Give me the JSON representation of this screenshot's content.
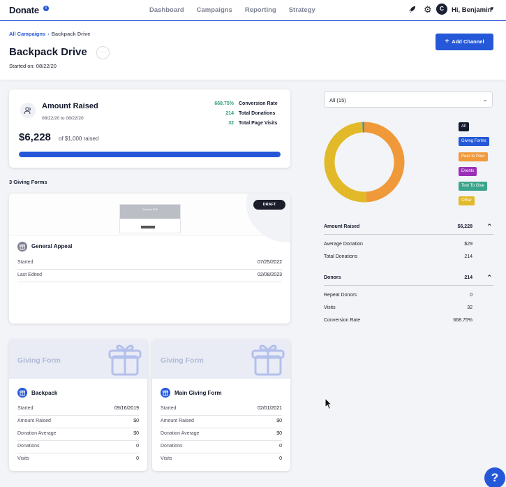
{
  "app": {
    "logo": "Donate",
    "info_icon": "info-icon"
  },
  "nav": {
    "links": [
      "Dashboard",
      "Campaigns",
      "Reporting",
      "Strategy"
    ],
    "avatar_initial": "C",
    "greeting": "Hi, Benjamin"
  },
  "breadcrumb": {
    "parent": "All Campaigns",
    "current": "Backpack Drive"
  },
  "page": {
    "title": "Backpack Drive",
    "started": "Started on: 08/22/20",
    "add_channel": "Add Channel",
    "add_icon": "+"
  },
  "amount_card": {
    "title": "Amount Raised",
    "dates": "08/22/20 to 08/22/20",
    "raised": "$6,228",
    "raised_of": "of $1,000 raised",
    "progress_fraction": 1.0,
    "stats": [
      {
        "value": "668.75%",
        "label": "Conversion Rate"
      },
      {
        "value": "214",
        "label": "Total Donations"
      },
      {
        "value": "32",
        "label": "Total Page Visits"
      }
    ]
  },
  "forms_heading": "3 Giving Forms",
  "general_appeal": {
    "badge": "DRAFT",
    "preview_text": "Giving to DRK",
    "name": "General Appeal",
    "rows": [
      {
        "k": "Started",
        "v": "07/25/2022"
      },
      {
        "k": "Last Edited",
        "v": "02/08/2023"
      }
    ]
  },
  "giving_forms": [
    {
      "banner": "Giving Form",
      "name": "Backpack",
      "rows": [
        {
          "k": "Started",
          "v": "09/16/2019"
        },
        {
          "k": "Amount Raised",
          "v": "$0"
        },
        {
          "k": "Donation Average",
          "v": "$0"
        },
        {
          "k": "Donations",
          "v": "0"
        },
        {
          "k": "Visits",
          "v": "0"
        }
      ]
    },
    {
      "banner": "Giving Form",
      "name": "Main Giving Form",
      "rows": [
        {
          "k": "Started",
          "v": "02/01/2021"
        },
        {
          "k": "Amount Raised",
          "v": "$0"
        },
        {
          "k": "Donation Average",
          "v": "$0"
        },
        {
          "k": "Donations",
          "v": "0"
        },
        {
          "k": "Visits",
          "v": "0"
        }
      ]
    }
  ],
  "filter": {
    "value": "All (15)"
  },
  "donut": {
    "segments": [
      {
        "label": "Peer to Peer",
        "fraction": 0.49,
        "color": "#f0993a"
      },
      {
        "label": "Other",
        "fraction": 0.5,
        "color": "#e2b929"
      },
      {
        "label": "Text To Give",
        "fraction": 0.01,
        "color": "#5b8f84"
      }
    ]
  },
  "legend": [
    {
      "label": "All",
      "color": "#141a2e"
    },
    {
      "label": "Giving Forms",
      "color": "#2458d8"
    },
    {
      "label": "Peer to Peer",
      "color": "#f0993a"
    },
    {
      "label": "Events",
      "color": "#9b2fb8"
    },
    {
      "label": "Text To Give",
      "color": "#3aa58a"
    },
    {
      "label": "Other",
      "color": "#e2b929"
    }
  ],
  "amount_section": {
    "title": "Amount Raised",
    "value": "$6,228",
    "rows": [
      {
        "k": "Average Donation",
        "v": "$29"
      },
      {
        "k": "Total Donations",
        "v": "214"
      }
    ]
  },
  "donors_section": {
    "title": "Donors",
    "value": "214",
    "rows": [
      {
        "k": "Repeat Donors",
        "v": "0"
      },
      {
        "k": "Visits",
        "v": "32"
      },
      {
        "k": "Conversion Rate",
        "v": "668.75%"
      }
    ]
  },
  "help": "?"
}
